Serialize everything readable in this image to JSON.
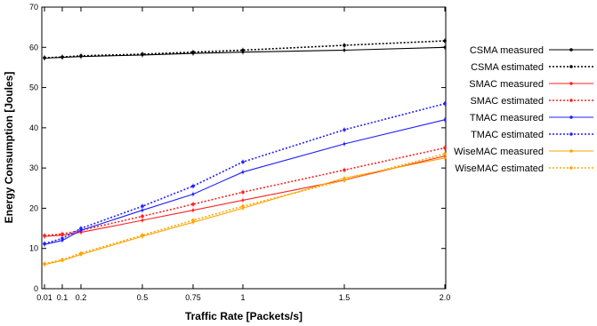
{
  "chart_data": {
    "type": "line",
    "xlabel": "Traffic Rate [Packets/s]",
    "ylabel": "Energy Consumption [Joules]",
    "x_ticks": [
      "0.01",
      "0.1",
      "0.2",
      "0.5",
      "0.75",
      "1",
      "1.5",
      "2.0"
    ],
    "x_tick_values": [
      0.01,
      0.1,
      0.2,
      0.5,
      0.75,
      1,
      1.5,
      2.0
    ],
    "ylim": [
      0,
      70
    ],
    "y_ticks": [
      0,
      10,
      20,
      30,
      40,
      50,
      60,
      70
    ],
    "grid": false,
    "legend_position": "outside-right",
    "series": [
      {
        "name": "CSMA measured",
        "color": "#000000",
        "dashed": false,
        "x": [
          0.01,
          0.1,
          0.2,
          0.5,
          0.75,
          1,
          1.5,
          2.0
        ],
        "y": [
          57.3,
          57.5,
          57.7,
          58.1,
          58.5,
          58.8,
          59.3,
          60.0
        ]
      },
      {
        "name": "CSMA estimated",
        "color": "#000000",
        "dashed": true,
        "x": [
          0.01,
          0.1,
          0.2,
          0.5,
          0.75,
          1,
          1.5,
          2.0
        ],
        "y": [
          57.4,
          57.6,
          57.9,
          58.3,
          58.8,
          59.3,
          60.5,
          61.6
        ]
      },
      {
        "name": "SMAC measured",
        "color": "#ff2020",
        "dashed": false,
        "x": [
          0.01,
          0.1,
          0.2,
          0.5,
          0.75,
          1,
          1.5,
          2.0
        ],
        "y": [
          13.0,
          13.3,
          14.0,
          17.0,
          19.5,
          22.0,
          27.0,
          33.0
        ]
      },
      {
        "name": "SMAC estimated",
        "color": "#ff2020",
        "dashed": true,
        "x": [
          0.01,
          0.1,
          0.2,
          0.5,
          0.75,
          1,
          1.5,
          2.0
        ],
        "y": [
          13.2,
          13.6,
          14.5,
          18.0,
          21.0,
          24.0,
          29.5,
          35.0
        ]
      },
      {
        "name": "TMAC measured",
        "color": "#2020ff",
        "dashed": false,
        "x": [
          0.01,
          0.1,
          0.2,
          0.5,
          0.75,
          1,
          1.5,
          2.0
        ],
        "y": [
          11.0,
          12.0,
          14.5,
          19.5,
          23.5,
          29.0,
          36.0,
          42.0
        ]
      },
      {
        "name": "TMAC estimated",
        "color": "#2020ff",
        "dashed": true,
        "x": [
          0.01,
          0.1,
          0.2,
          0.5,
          0.75,
          1,
          1.5,
          2.0
        ],
        "y": [
          11.2,
          12.5,
          15.0,
          20.5,
          25.5,
          31.5,
          39.5,
          46.0
        ]
      },
      {
        "name": "WiseMAC measured",
        "color": "#ffa500",
        "dashed": false,
        "x": [
          0.01,
          0.1,
          0.2,
          0.5,
          0.75,
          1,
          1.5,
          2.0
        ],
        "y": [
          6.0,
          7.0,
          8.5,
          13.0,
          16.5,
          20.0,
          27.5,
          32.5
        ]
      },
      {
        "name": "WiseMAC estimated",
        "color": "#ffa500",
        "dashed": true,
        "x": [
          0.01,
          0.1,
          0.2,
          0.5,
          0.75,
          1,
          1.5,
          2.0
        ],
        "y": [
          6.2,
          7.2,
          8.8,
          13.3,
          17.0,
          20.5,
          27.0,
          33.5
        ]
      }
    ]
  }
}
